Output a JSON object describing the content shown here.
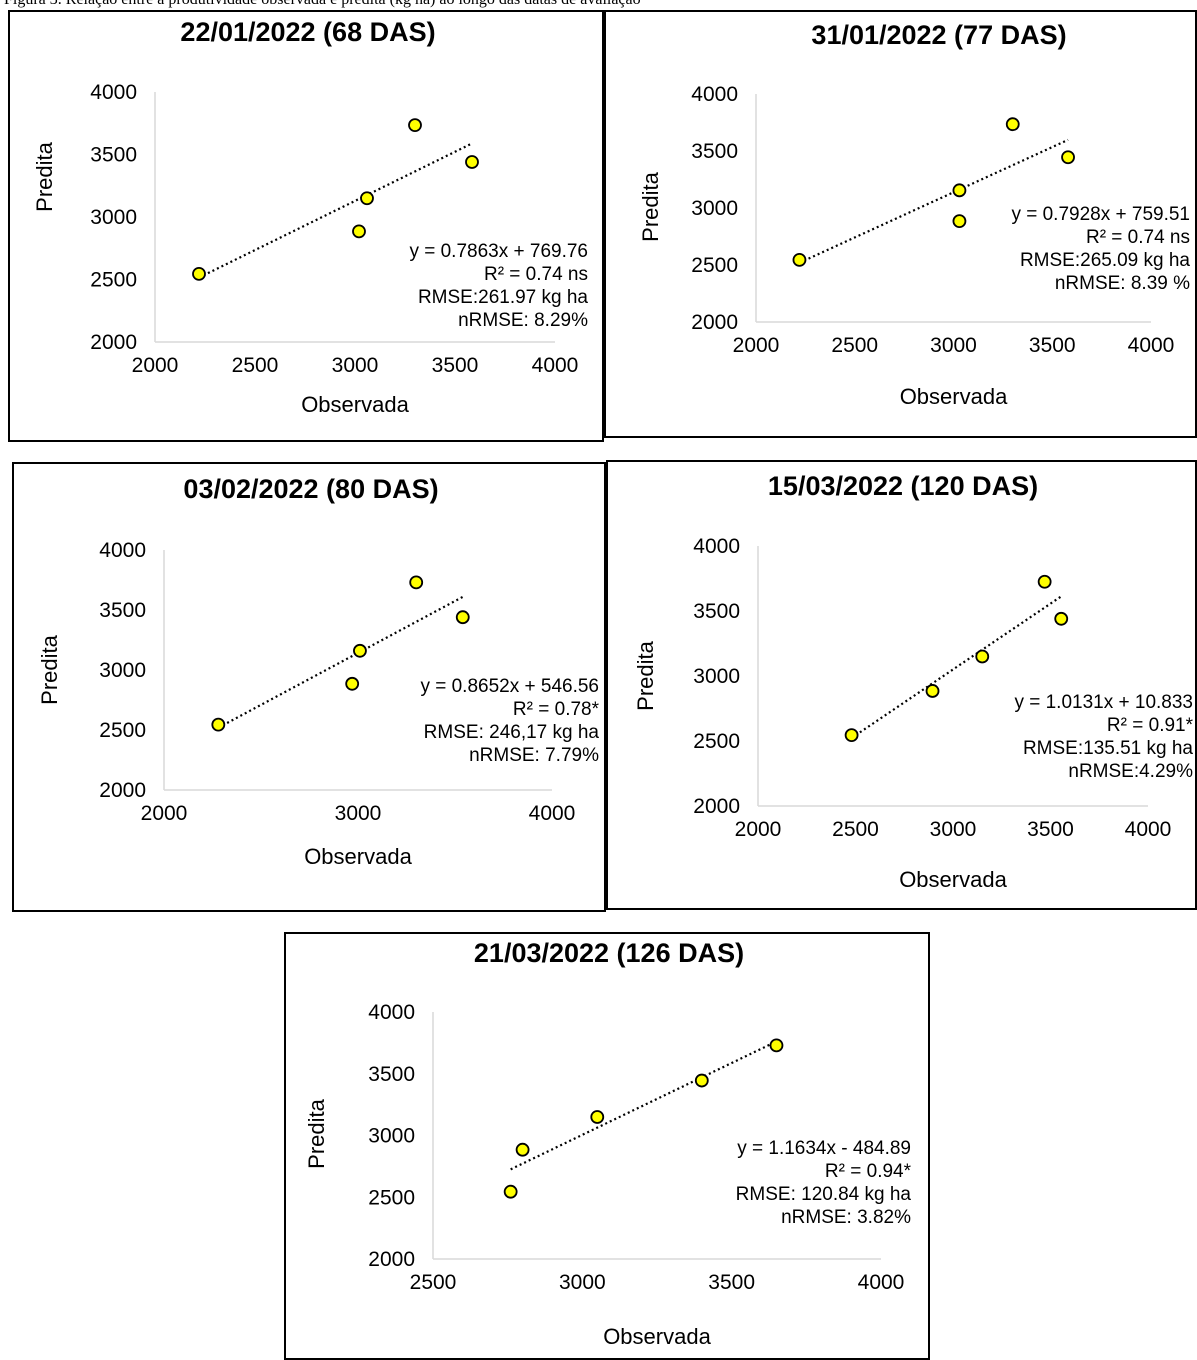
{
  "caption": "Figura 3. Relação entre a produtividade observada e predita (kg ha) ao longo das datas de avaliação",
  "chart_data": [
    {
      "type": "scatter",
      "title": "22/01/2022 (68 DAS)",
      "xlabel": "Observada",
      "ylabel": "Predita",
      "xlim": [
        2000,
        4000
      ],
      "ylim": [
        2000,
        4000
      ],
      "xticks": [
        2000,
        2500,
        3000,
        3500,
        4000
      ],
      "yticks": [
        2000,
        2500,
        3000,
        3500,
        4000
      ],
      "points": [
        {
          "x": 2220,
          "y": 2545
        },
        {
          "x": 3020,
          "y": 2885
        },
        {
          "x": 3060,
          "y": 3150
        },
        {
          "x": 3300,
          "y": 3735
        },
        {
          "x": 3585,
          "y": 3440
        }
      ],
      "trendline": {
        "slope": 0.7863,
        "intercept": 769.76,
        "x_range": [
          2220,
          3585
        ]
      },
      "annotations": [
        "y = 0.7863x + 769.76",
        "R² = 0.74 ns",
        "RMSE:261.97 kg ha",
        "nRMSE: 8.29%"
      ],
      "marker_color": "#FFFF00",
      "grid": false,
      "legend": "none"
    },
    {
      "type": "scatter",
      "title": "31/01/2022 (77 DAS)",
      "xlabel": "Observada",
      "ylabel": "Predita",
      "xlim": [
        2000,
        4000
      ],
      "ylim": [
        2000,
        4000
      ],
      "xticks": [
        2000,
        2500,
        3000,
        3500,
        4000
      ],
      "yticks": [
        2000,
        2500,
        3000,
        3500,
        4000
      ],
      "points": [
        {
          "x": 2220,
          "y": 2545
        },
        {
          "x": 3030,
          "y": 2885
        },
        {
          "x": 3030,
          "y": 3155
        },
        {
          "x": 3300,
          "y": 3735
        },
        {
          "x": 3580,
          "y": 3445
        }
      ],
      "trendline": {
        "slope": 0.7928,
        "intercept": 759.51,
        "x_range": [
          2220,
          3580
        ]
      },
      "annotations": [
        "y = 0.7928x + 759.51",
        "R² = 0.74 ns",
        "RMSE:265.09 kg ha",
        "nRMSE: 8.39 %"
      ],
      "marker_color": "#FFFF00",
      "grid": false,
      "legend": "none"
    },
    {
      "type": "scatter",
      "title": "03/02/2022 (80 DAS)",
      "xlabel": "Observada",
      "ylabel": "Predita",
      "xlim": [
        2000,
        4000
      ],
      "ylim": [
        2000,
        4000
      ],
      "xticks": [
        2000,
        3000,
        4000
      ],
      "yticks": [
        2000,
        2500,
        3000,
        3500,
        4000
      ],
      "points": [
        {
          "x": 2280,
          "y": 2545
        },
        {
          "x": 2970,
          "y": 2885
        },
        {
          "x": 3010,
          "y": 3160
        },
        {
          "x": 3300,
          "y": 3730
        },
        {
          "x": 3540,
          "y": 3440
        }
      ],
      "trendline": {
        "slope": 0.8652,
        "intercept": 546.56,
        "x_range": [
          2280,
          3540
        ]
      },
      "annotations": [
        "y = 0.8652x + 546.56",
        "R² = 0.78*",
        "RMSE: 246,17 kg ha",
        "nRMSE: 7.79%"
      ],
      "marker_color": "#FFFF00",
      "grid": false,
      "legend": "none"
    },
    {
      "type": "scatter",
      "title": "15/03/2022 (120 DAS)",
      "xlabel": "Observada",
      "ylabel": "Predita",
      "xlim": [
        2000,
        4000
      ],
      "ylim": [
        2000,
        4000
      ],
      "xticks": [
        2000,
        2500,
        3000,
        3500,
        4000
      ],
      "yticks": [
        2000,
        2500,
        3000,
        3500,
        4000
      ],
      "points": [
        {
          "x": 2480,
          "y": 2545
        },
        {
          "x": 2895,
          "y": 2885
        },
        {
          "x": 3150,
          "y": 3150
        },
        {
          "x": 3470,
          "y": 3725
        },
        {
          "x": 3555,
          "y": 3440
        }
      ],
      "trendline": {
        "slope": 1.0131,
        "intercept": 10.833,
        "x_range": [
          2480,
          3555
        ]
      },
      "annotations": [
        "y = 1.0131x + 10.833",
        "R² = 0.91*",
        "RMSE:135.51 kg ha",
        "nRMSE:4.29%"
      ],
      "marker_color": "#FFFF00",
      "grid": false,
      "legend": "none"
    },
    {
      "type": "scatter",
      "title": "21/03/2022 (126 DAS)",
      "xlabel": "Observada",
      "ylabel": "Predita",
      "xlim": [
        2500,
        4000
      ],
      "ylim": [
        2000,
        4000
      ],
      "xticks": [
        2500,
        3000,
        3500,
        4000
      ],
      "yticks": [
        2000,
        2500,
        3000,
        3500,
        4000
      ],
      "points": [
        {
          "x": 2760,
          "y": 2545
        },
        {
          "x": 2800,
          "y": 2885
        },
        {
          "x": 3050,
          "y": 3150
        },
        {
          "x": 3400,
          "y": 3445
        },
        {
          "x": 3650,
          "y": 3730
        }
      ],
      "trendline": {
        "slope": 1.1634,
        "intercept": -484.89,
        "x_range": [
          2760,
          3650
        ]
      },
      "annotations": [
        "y = 1.1634x - 484.89",
        "R² = 0.94*",
        "RMSE: 120.84 kg ha",
        "nRMSE: 3.82%"
      ],
      "marker_color": "#FFFF00",
      "grid": false,
      "legend": "none"
    }
  ]
}
